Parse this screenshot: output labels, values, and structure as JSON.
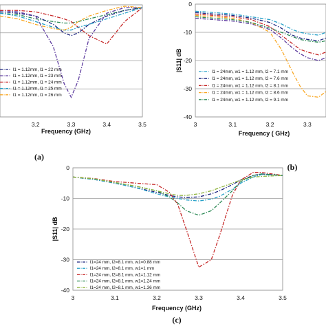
{
  "chart_data": [
    {
      "type": "line",
      "caption": "(a)",
      "xlabel": "Frequency (GHz)",
      "ylabel": "",
      "xlim": [
        3.1,
        3.5
      ],
      "ylim": [
        -40,
        0
      ],
      "xticks": [
        "3.2",
        "3.3",
        "3.4",
        "3.5"
      ],
      "yticks": [],
      "grid": "horizontal",
      "legend_position": "bottom-left",
      "x": [
        3.1,
        3.15,
        3.2,
        3.25,
        3.28,
        3.3,
        3.32,
        3.35,
        3.4,
        3.45,
        3.5
      ],
      "series": [
        {
          "name": "l1 = 1.12mm, l1 = 22 mm",
          "color": "#1a237e",
          "values": [
            -2.5,
            -3,
            -4,
            -7,
            -10,
            -11,
            -10,
            -7,
            -4,
            -2,
            -1
          ]
        },
        {
          "name": "l1 = 1.12mm, l1 = 23 mm",
          "color": "#5c3a9e",
          "values": [
            -2,
            -2.5,
            -4,
            -15,
            -28,
            -33,
            -27,
            -12,
            -3,
            -1,
            -1
          ]
        },
        {
          "name": "l1 = 1.12mm, l1 = 24 mm",
          "color": "#c62828",
          "values": [
            -2,
            -2,
            -2.5,
            -4,
            -5,
            -6,
            -8,
            -11,
            -14,
            -6,
            -1
          ]
        },
        {
          "name": "l1 = 1.12mm, l1 = 25 mm",
          "color": "#26a0c8",
          "values": [
            -3,
            -4,
            -6,
            -8,
            -9,
            -9,
            -8,
            -7,
            -5,
            -3,
            -1
          ]
        },
        {
          "name": "l1 = 1.12mm, l1 = 26 mm",
          "color": "#f9a825",
          "values": [
            -4,
            -5,
            -7,
            -8.5,
            -9,
            -8,
            -6,
            -4,
            -2,
            -0.5,
            -1
          ]
        }
      ],
      "extra_series": [
        {
          "color": "#2e8b57",
          "values": [
            -3,
            -3.5,
            -5,
            -6,
            -6.5,
            -6.5,
            -6,
            -5,
            -3.5,
            -2,
            -1
          ]
        }
      ]
    },
    {
      "type": "line",
      "caption": "(b)",
      "xlabel": "Frequency ( GHz)",
      "ylabel": "|S11| dB",
      "xlim": [
        3,
        3.35
      ],
      "ylim": [
        -40,
        0
      ],
      "xticks": [
        "3",
        "3.1",
        "3.2",
        "3.3"
      ],
      "yticks": [
        "0",
        "-10",
        "-20",
        "-30",
        "-40"
      ],
      "grid": "horizontal",
      "legend_position": "bottom-left",
      "x": [
        3.0,
        3.05,
        3.1,
        3.15,
        3.2,
        3.23,
        3.26,
        3.28,
        3.3,
        3.33,
        3.35
      ],
      "series": [
        {
          "name": "l1 = 24mm, w1 = 1.12 mm, l2 = 7.1 mm",
          "color": "#26a0c8",
          "values": [
            -2.5,
            -3,
            -3.5,
            -4.5,
            -5.5,
            -7,
            -9,
            -10,
            -10.5,
            -11,
            -10
          ]
        },
        {
          "name": "l1 = 24mm, w1 = 1.12 mm, l2 = 7.6 mm",
          "color": "#1a237e",
          "values": [
            -3,
            -3.5,
            -4,
            -5,
            -6.5,
            -8.5,
            -11,
            -12,
            -12.5,
            -13,
            -12
          ]
        },
        {
          "name": "l1 = 24mm, w1 = 1.12 mm, l2 = 8.1 mm",
          "color": "#c62828",
          "values": [
            -3.5,
            -4,
            -4.5,
            -5.5,
            -8,
            -11,
            -14,
            -16,
            -17,
            -18,
            -17
          ]
        },
        {
          "name": "l1 = 24mm, w1 = 1.12 mm, l2 = 8.6 mm",
          "color": "#f9a825",
          "values": [
            -4,
            -4.5,
            -5,
            -6.5,
            -10,
            -16,
            -24,
            -29,
            -32.5,
            -33,
            -31
          ]
        },
        {
          "name": "l1 = 24mm, w1 = 1.12 mm, l2 = 9.1 mm",
          "color": "#2e8b57",
          "values": [
            -4.5,
            -5,
            -5.5,
            -6.5,
            -8.5,
            -10,
            -11.5,
            -12.5,
            -13,
            -13.5,
            -13
          ]
        }
      ],
      "extra_series": [
        {
          "color": "#5c3a9e",
          "values": [
            -5,
            -5.5,
            -6,
            -7,
            -9,
            -12,
            -15.5,
            -17.5,
            -19,
            -20,
            -19
          ]
        }
      ]
    },
    {
      "type": "line",
      "caption": "(c)",
      "xlabel": "Frequency (GHz)",
      "ylabel": "|S11| dB",
      "xlim": [
        3,
        3.5
      ],
      "ylim": [
        -40,
        0
      ],
      "xticks": [
        "3",
        "3.1",
        "3.2",
        "3.3",
        "3.4",
        "3.5"
      ],
      "yticks": [
        "0",
        "-10",
        "-20",
        "-30",
        "-40"
      ],
      "grid": "horizontal",
      "legend_position": "bottom-left",
      "x": [
        3.0,
        3.05,
        3.1,
        3.15,
        3.2,
        3.23,
        3.25,
        3.27,
        3.3,
        3.33,
        3.35,
        3.38,
        3.4,
        3.43,
        3.45,
        3.5
      ],
      "series": [
        {
          "name": "l1=24 mm, l2=8.1 mm, w1=0.88 mm",
          "color": "#1a237e",
          "values": [
            -3,
            -3.8,
            -5,
            -6.5,
            -8,
            -9,
            -9.5,
            -9.7,
            -9.5,
            -8.5,
            -7.5,
            -5.5,
            -4,
            -2.5,
            -2,
            -2.5
          ]
        },
        {
          "name": "l1=24 mm, l2=8.1 mm, w1=1 mm",
          "color": "#26a0c8",
          "values": [
            -3,
            -3.8,
            -5,
            -6.5,
            -8.5,
            -9.5,
            -10,
            -10.5,
            -10.8,
            -10.3,
            -9.3,
            -7,
            -5,
            -3,
            -2.2,
            -2.5
          ]
        },
        {
          "name": "l1=24 mm, l2=8.1 mm, w1=1.12 mm",
          "color": "#c62828",
          "values": [
            -3,
            -3.5,
            -4.5,
            -5,
            -5.5,
            -8,
            -12,
            -20,
            -32.5,
            -30,
            -22,
            -9,
            -4,
            -1.5,
            -1.5,
            -2.5
          ]
        },
        {
          "name": "l1=24 mm, l2=8.1 mm, w1=1.24 mm",
          "color": "#2e8b57",
          "values": [
            -3,
            -3.6,
            -4.8,
            -6,
            -7.5,
            -9.5,
            -11.5,
            -14,
            -15.5,
            -14,
            -11.5,
            -7.5,
            -4.5,
            -2.5,
            -2,
            -2.5
          ]
        },
        {
          "name": "l1=24 mm, l2=8.1 mm, w1=1.36 mm",
          "color": "#8db33a",
          "values": [
            -3,
            -3.6,
            -4.8,
            -6,
            -7.5,
            -8.5,
            -9,
            -9,
            -8.5,
            -7.5,
            -6.5,
            -5,
            -4,
            -3,
            -2.8,
            -2.5
          ]
        }
      ]
    }
  ]
}
